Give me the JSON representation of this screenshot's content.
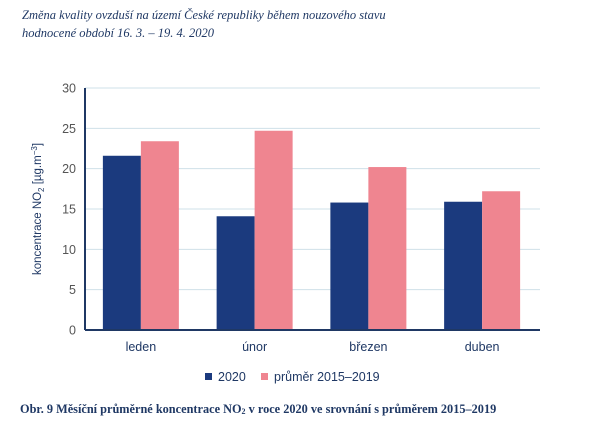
{
  "header": {
    "title_line1": "Změna kvality ovzduší na území České republiky během nouzového stavu",
    "title_line2": "hodnocené období 16. 3. – 19. 4. 2020"
  },
  "caption": {
    "prefix": "Obr. 9 Měsíční průměrné koncentrace NO",
    "sub": "2",
    "suffix": " v roce 2020 ve srovnání s průměrem 2015–2019"
  },
  "colors": {
    "series_2020": "#1b3a7e",
    "series_avg": "#ef8590",
    "axis": "#1f3864",
    "grid": "#cfe0e8",
    "tick_text": "#555555",
    "label_text": "#1f3864"
  },
  "chart_data": {
    "type": "bar",
    "title": "Měsíční průměrné koncentrace NO2 v roce 2020 ve srovnání s průměrem 2015–2019",
    "categories": [
      "leden",
      "únor",
      "březen",
      "duben"
    ],
    "series": [
      {
        "name": "2020",
        "values": [
          21.6,
          14.1,
          15.8,
          15.9
        ]
      },
      {
        "name": "průměr 2015–2019",
        "values": [
          23.4,
          24.7,
          20.2,
          17.2
        ]
      }
    ],
    "xlabel": "",
    "ylabel": "koncentrace NO2 [µg.m-3]",
    "ylabel_parts": {
      "main": "koncentrace NO",
      "sub": "2",
      "mid": " [µg.m",
      "sup": "−3",
      "end": "]"
    },
    "ylim": [
      0,
      30
    ],
    "yticks": [
      0,
      5,
      10,
      15,
      20,
      25,
      30
    ],
    "grid": true,
    "legend": "bottom-center"
  }
}
